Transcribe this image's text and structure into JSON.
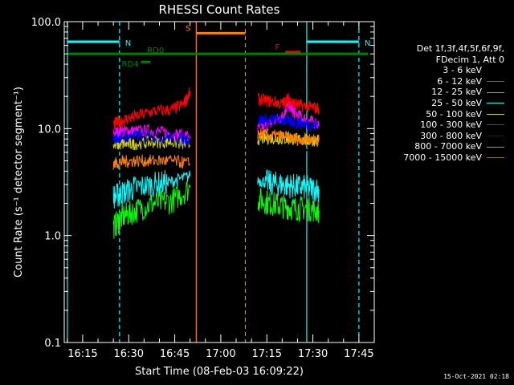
{
  "chart_data": {
    "type": "line",
    "title": "RHESSI Count Rates",
    "xlabel": "Start Time (08-Feb-03 16:09:22)",
    "ylabel": "Count Rate (s⁻¹ detector segment⁻¹)",
    "y_scale": "log",
    "ylim": [
      0.1,
      100.0
    ],
    "xlim": [
      "16:09",
      "17:50"
    ],
    "grid": false,
    "legend_position": "right",
    "x_ticks": [
      "16:15",
      "16:30",
      "16:45",
      "17:00",
      "17:15",
      "17:30",
      "17:45"
    ],
    "y_ticks": [
      "0.1",
      "1.0",
      "10.0",
      "100.0"
    ],
    "legend_header": [
      "Det 1f,3f,4f,5f,6f,9f,",
      "FDecim 1, Att 0"
    ],
    "series": [
      {
        "name": "3 - 6 keV",
        "color": "#000000",
        "segments": [
          {
            "t": [
              "16:25",
              "16:28",
              "16:32",
              "16:38",
              "16:44",
              "16:50"
            ],
            "v": [
              6.5,
              7.0,
              7.0,
              7.0,
              7.0,
              6.5
            ]
          },
          {
            "t": [
              "17:12",
              "17:16",
              "17:20",
              "17:24",
              "17:28",
              "17:32"
            ],
            "v": [
              6.0,
              6.0,
              6.5,
              6.0,
              6.0,
              6.0
            ]
          }
        ]
      },
      {
        "name": "6 - 12 keV",
        "color": "#ff00ff",
        "segments": [
          {
            "t": [
              "16:25",
              "16:28",
              "16:32",
              "16:38",
              "16:44",
              "16:50"
            ],
            "v": [
              9.0,
              9.5,
              9.5,
              9.5,
              9.0,
              8.5
            ]
          },
          {
            "t": [
              "17:12",
              "17:16",
              "17:20",
              "17:22",
              "17:24",
              "17:28",
              "17:32"
            ],
            "v": [
              10.0,
              11.0,
              13.0,
              17.0,
              14.0,
              12.0,
              11.0
            ]
          }
        ]
      },
      {
        "name": "12 - 25 keV",
        "color": "#00ff00",
        "segments": [
          {
            "t": [
              "16:25",
              "16:28",
              "16:32",
              "16:38",
              "16:44",
              "16:50"
            ],
            "v": [
              1.2,
              1.5,
              1.7,
              2.0,
              2.1,
              2.8
            ]
          },
          {
            "t": [
              "17:12",
              "17:16",
              "17:20",
              "17:24",
              "17:28",
              "17:32"
            ],
            "v": [
              2.2,
              2.0,
              1.9,
              1.8,
              1.8,
              1.7
            ]
          }
        ]
      },
      {
        "name": "25 - 50 keV",
        "color": "#00ffff",
        "segments": [
          {
            "t": [
              "16:25",
              "16:28",
              "16:32",
              "16:38",
              "16:44",
              "16:50"
            ],
            "v": [
              2.3,
              2.5,
              2.8,
              3.0,
              3.2,
              3.6
            ]
          },
          {
            "t": [
              "17:12",
              "17:16",
              "17:20",
              "17:24",
              "17:28",
              "17:32"
            ],
            "v": [
              3.3,
              3.1,
              3.0,
              2.9,
              2.8,
              2.7
            ]
          }
        ]
      },
      {
        "name": "50 - 100 keV",
        "color": "#d8d800",
        "segments": [
          {
            "t": [
              "16:25",
              "16:28",
              "16:32",
              "16:38",
              "16:44",
              "16:50"
            ],
            "v": [
              7.0,
              7.2,
              7.2,
              7.5,
              7.5,
              7.0
            ]
          },
          {
            "t": [
              "17:12",
              "17:16",
              "17:20",
              "17:24",
              "17:28",
              "17:32"
            ],
            "v": [
              8.0,
              8.2,
              8.0,
              8.0,
              7.8,
              7.8
            ]
          }
        ]
      },
      {
        "name": "100 - 300 keV",
        "color": "#ff0000",
        "segments": [
          {
            "t": [
              "16:25",
              "16:28",
              "16:32",
              "16:38",
              "16:44",
              "16:48",
              "16:50"
            ],
            "v": [
              11.0,
              12.0,
              13.0,
              14.5,
              15.0,
              17.0,
              22.0
            ]
          },
          {
            "t": [
              "17:12",
              "17:16",
              "17:20",
              "17:22",
              "17:24",
              "17:28",
              "17:32"
            ],
            "v": [
              19.0,
              18.0,
              17.0,
              19.0,
              17.0,
              16.0,
              15.5
            ]
          }
        ]
      },
      {
        "name": "300 - 800 keV",
        "color": "#0000ff",
        "segments": [
          {
            "t": [
              "16:25",
              "16:28",
              "16:32",
              "16:38",
              "16:44",
              "16:50"
            ],
            "v": [
              8.0,
              8.3,
              8.5,
              8.5,
              8.3,
              8.0
            ]
          },
          {
            "t": [
              "17:12",
              "17:16",
              "17:20",
              "17:24",
              "17:28",
              "17:32"
            ],
            "v": [
              12.0,
              12.0,
              12.0,
              11.5,
              11.0,
              10.5
            ]
          }
        ]
      },
      {
        "name": "800 - 7000 keV",
        "color": "#ff8000",
        "segments": [
          {
            "t": [
              "16:25",
              "16:28",
              "16:32",
              "16:38",
              "16:44",
              "16:50"
            ],
            "v": [
              4.7,
              4.9,
              5.0,
              5.0,
              5.0,
              4.7
            ]
          },
          {
            "t": [
              "17:12",
              "17:16",
              "17:20",
              "17:24",
              "17:28",
              "17:32"
            ],
            "v": [
              9.0,
              8.5,
              8.5,
              8.0,
              8.0,
              7.8
            ]
          }
        ]
      },
      {
        "name": "7000 - 15000 keV",
        "color": "#8b6914",
        "segments": []
      }
    ],
    "markers": {
      "vlines": [
        {
          "t": "16:10",
          "color": "#00ffff",
          "style": "solid"
        },
        {
          "t": "16:27",
          "color": "#00ffff",
          "style": "dashed"
        },
        {
          "t": "16:52",
          "color": "#ff8000",
          "style": "solid"
        },
        {
          "t": "17:08",
          "color": "#ff8000",
          "style": "dashed"
        },
        {
          "t": "17:28",
          "color": "#00ffff",
          "style": "solid"
        },
        {
          "t": "17:45",
          "color": "#00ffff",
          "style": "dashed"
        }
      ],
      "bars": [
        {
          "label": "N",
          "color": "#00ffff",
          "t0": "16:10",
          "t1": "16:27",
          "v": 65
        },
        {
          "label": "N",
          "color": "#00ffff",
          "t0": "17:28",
          "t1": "17:45",
          "v": 65
        },
        {
          "label": "S",
          "color": "#ff8000",
          "t0": "16:52",
          "t1": "17:08",
          "v": 78
        },
        {
          "label": "F",
          "color": "#ff0000",
          "t0": "17:21",
          "t1": "17:26",
          "v": 52
        },
        {
          "label": "RD4",
          "color": "#008000",
          "t0": "16:34",
          "t1": "16:37",
          "v": 42
        },
        {
          "label": "RD0",
          "color": "#008000",
          "t0": "16:10",
          "t1": "17:48",
          "v": 50
        }
      ]
    }
  },
  "footer": {
    "timestamp": "15-Oct-2021 02:18"
  }
}
